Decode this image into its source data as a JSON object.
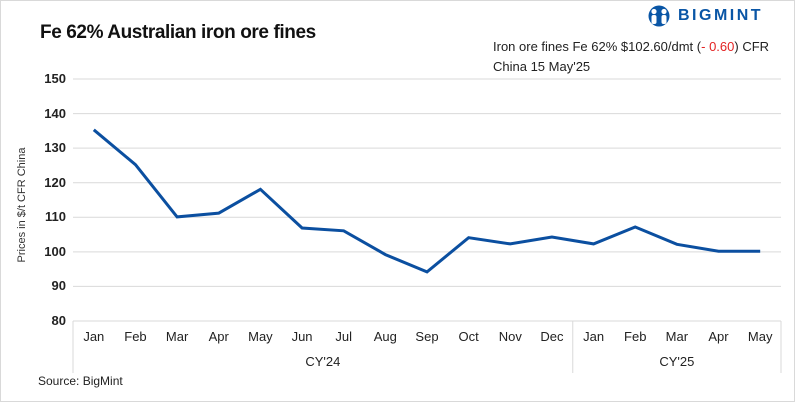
{
  "header": {
    "title": "Fe 62% Australian iron ore fines",
    "logo_text": "BIGMINT",
    "logo_icon": "bigmint-people-icon",
    "info_line1_prefix": "Iron ore fines Fe 62% $102.60/dmt (",
    "info_change": "- 0.60",
    "info_line1_suffix": ") CFR",
    "info_line2": "China 15 May'25",
    "change_color": "#e32222"
  },
  "footer": {
    "source": "Source: BigMint"
  },
  "colors": {
    "line": "#0b4fa0",
    "grid": "#d9d9d9",
    "brand": "#0a56a6"
  },
  "chart_data": {
    "type": "line",
    "title": "Fe 62% Australian iron ore fines",
    "xlabel": "",
    "ylabel": "Prices in $/t CFR China",
    "ylim": [
      80,
      150
    ],
    "yticks": [
      80,
      90,
      100,
      110,
      120,
      130,
      140,
      150
    ],
    "grid": true,
    "legend": "none",
    "categories": [
      "Jan",
      "Feb",
      "Mar",
      "Apr",
      "May",
      "Jun",
      "Jul",
      "Aug",
      "Sep",
      "Oct",
      "Nov",
      "Dec",
      "Jan",
      "Feb",
      "Mar",
      "Apr",
      "May"
    ],
    "groups": [
      {
        "label": "CY'24",
        "start": 0,
        "end": 11
      },
      {
        "label": "CY'25",
        "start": 12,
        "end": 16
      }
    ],
    "series": [
      {
        "name": "Fe 62% Australian iron ore fines",
        "values": [
          135.3,
          125.2,
          110.1,
          111.2,
          118.1,
          106.9,
          106.1,
          99.2,
          94.2,
          104.1,
          102.3,
          104.3,
          102.3,
          107.2,
          102.2,
          100.2,
          100.2
        ]
      }
    ],
    "annotation": "Iron ore fines Fe 62% $102.60/dmt (- 0.60) CFR China 15 May'25"
  }
}
